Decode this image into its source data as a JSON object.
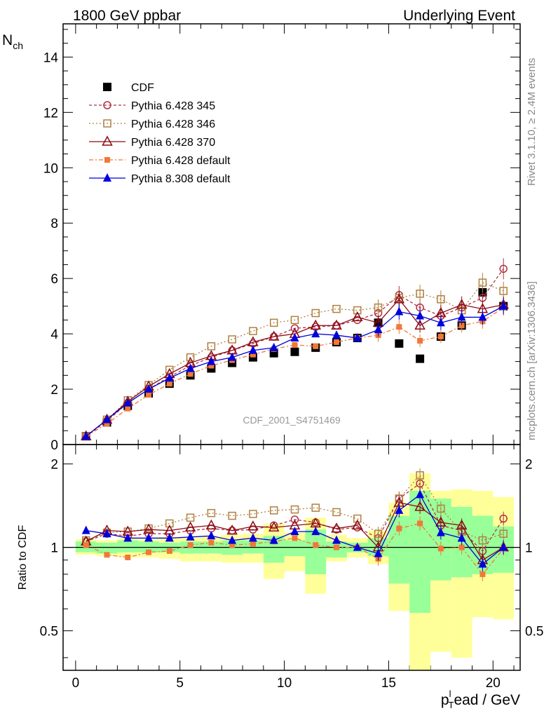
{
  "header": {
    "left": "1800 GeV ppbar",
    "right": "Underlying Event"
  },
  "side_labels": {
    "rivet": "Rivet 3.1.10, ≥ 2.4M events",
    "mcplots": "mcplots.cern.ch [arXiv:1306.3436]"
  },
  "chart_data": [
    {
      "type": "scatter",
      "panel": "main",
      "watermark": "CDF_2001_S4751469",
      "ylabel_main": "N",
      "ylabel_sub": "ch",
      "xlabel_main": "p",
      "xlabel_sub": "T",
      "xlabel_sup": "l",
      "xlabel_rest": "ead / GeV",
      "xlim": [
        -0.6,
        21.3
      ],
      "ylim": [
        0,
        15.2
      ],
      "yticks": [
        0,
        2,
        4,
        6,
        8,
        10,
        12,
        14
      ],
      "xticks": [
        0,
        5,
        10,
        15,
        20
      ],
      "x": [
        0.5,
        1.5,
        2.5,
        3.5,
        4.5,
        5.5,
        6.5,
        7.5,
        8.5,
        9.5,
        10.5,
        11.5,
        12.5,
        13.5,
        14.5,
        15.5,
        16.5,
        17.5,
        18.5,
        19.5,
        20.5
      ],
      "series": [
        {
          "name": "CDF",
          "color": "#000000",
          "marker": "square-filled",
          "values": [
            0.3,
            0.8,
            1.4,
            1.85,
            2.2,
            2.5,
            2.75,
            2.95,
            3.15,
            3.3,
            3.35,
            3.5,
            3.7,
            3.85,
            4.4,
            3.65,
            3.1,
            3.9,
            4.3,
            5.5,
            5.0
          ]
        },
        {
          "name": "Pythia 6.428 345",
          "color": "#b03040",
          "marker": "circle-open",
          "dash": "4,3",
          "values": [
            0.3,
            0.85,
            1.5,
            2.0,
            2.45,
            2.85,
            3.15,
            3.4,
            3.65,
            3.9,
            4.2,
            4.25,
            4.3,
            4.5,
            4.75,
            5.4,
            4.95,
            4.65,
            4.95,
            5.3,
            6.35
          ]
        },
        {
          "name": "Pythia 6.428 346",
          "color": "#b08040",
          "marker": "square-open",
          "dash": "2,3",
          "values": [
            0.3,
            0.9,
            1.6,
            2.15,
            2.7,
            3.15,
            3.55,
            3.8,
            4.1,
            4.4,
            4.5,
            4.75,
            4.9,
            4.85,
            4.95,
            5.3,
            5.45,
            5.25,
            4.85,
            5.85,
            5.55
          ]
        },
        {
          "name": "Pythia 6.428 370",
          "color": "#8b0a14",
          "marker": "triangle-open",
          "values": [
            0.3,
            0.9,
            1.55,
            2.1,
            2.55,
            2.95,
            3.2,
            3.4,
            3.7,
            3.9,
            4.0,
            4.3,
            4.3,
            4.6,
            4.4,
            5.25,
            4.3,
            4.75,
            5.05,
            4.9,
            5.05
          ]
        },
        {
          "name": "Pythia 6.428 default",
          "color": "#f07838",
          "marker": "square-filled-small",
          "dash": "6,3,2,3",
          "values": [
            0.3,
            0.75,
            1.3,
            1.8,
            2.2,
            2.55,
            2.85,
            3.05,
            3.25,
            3.45,
            3.6,
            3.55,
            3.7,
            3.85,
            3.95,
            4.25,
            3.75,
            3.9,
            4.3,
            4.45,
            4.95
          ]
        },
        {
          "name": "Pythia 8.308 default",
          "color": "#0000dd",
          "marker": "triangle-filled",
          "values": [
            0.3,
            0.9,
            1.5,
            2.0,
            2.4,
            2.75,
            3.0,
            3.15,
            3.4,
            3.5,
            3.85,
            4.0,
            3.95,
            3.85,
            4.15,
            4.8,
            4.65,
            4.4,
            4.6,
            4.6,
            5.0
          ]
        }
      ],
      "legend_position": "top-left"
    },
    {
      "type": "scatter",
      "panel": "ratio",
      "ylabel": "Ratio to CDF",
      "yscale": "log",
      "ylim": [
        0.36,
        2.35
      ],
      "yticks": [
        0.5,
        1,
        2
      ],
      "reference_line": 1,
      "band_green": [
        [
          0.96,
          1.05
        ],
        [
          0.95,
          1.04
        ],
        [
          0.96,
          1.06
        ],
        [
          0.96,
          1.05
        ],
        [
          0.96,
          1.04
        ],
        [
          0.95,
          1.05
        ],
        [
          0.95,
          1.05
        ],
        [
          0.94,
          1.06
        ],
        [
          0.95,
          1.06
        ],
        [
          0.88,
          1.1
        ],
        [
          0.93,
          1.06
        ],
        [
          0.8,
          1.16
        ],
        [
          0.92,
          1.05
        ],
        [
          0.96,
          1.04
        ],
        [
          0.93,
          1.08
        ],
        [
          0.74,
          1.3
        ],
        [
          0.58,
          1.6
        ],
        [
          0.76,
          1.5
        ],
        [
          0.78,
          1.4
        ],
        [
          0.8,
          1.3
        ],
        [
          0.81,
          1.19
        ]
      ],
      "band_yellow": [
        [
          0.94,
          1.07
        ],
        [
          0.93,
          1.06
        ],
        [
          0.92,
          1.08
        ],
        [
          0.92,
          1.07
        ],
        [
          0.91,
          1.09
        ],
        [
          0.89,
          1.09
        ],
        [
          0.89,
          1.1
        ],
        [
          0.88,
          1.11
        ],
        [
          0.88,
          1.12
        ],
        [
          0.77,
          1.22
        ],
        [
          0.82,
          1.13
        ],
        [
          0.68,
          1.28
        ],
        [
          0.89,
          1.11
        ],
        [
          0.92,
          1.08
        ],
        [
          0.87,
          1.15
        ],
        [
          0.59,
          1.45
        ],
        [
          0.36,
          1.85
        ],
        [
          0.42,
          1.6
        ],
        [
          0.4,
          1.62
        ],
        [
          0.56,
          1.6
        ],
        [
          0.55,
          1.52
        ]
      ],
      "x": [
        0.5,
        1.5,
        2.5,
        3.5,
        4.5,
        5.5,
        6.5,
        7.5,
        8.5,
        9.5,
        10.5,
        11.5,
        12.5,
        13.5,
        14.5,
        15.5,
        16.5,
        17.5,
        18.5,
        19.5,
        20.5
      ],
      "series": [
        {
          "name": "Pythia 6.428 345",
          "color": "#b03040",
          "marker": "circle-open",
          "dash": "4,3",
          "values": [
            1.05,
            1.12,
            1.1,
            1.12,
            1.12,
            1.15,
            1.17,
            1.15,
            1.16,
            1.2,
            1.26,
            1.23,
            1.16,
            1.18,
            1.08,
            1.5,
            1.7,
            1.2,
            1.15,
            0.97,
            1.27
          ]
        },
        {
          "name": "Pythia 6.428 346",
          "color": "#b08040",
          "marker": "square-open",
          "dash": "2,3",
          "values": [
            1.06,
            1.13,
            1.14,
            1.17,
            1.22,
            1.28,
            1.33,
            1.3,
            1.32,
            1.36,
            1.37,
            1.39,
            1.34,
            1.27,
            1.12,
            1.5,
            1.82,
            1.38,
            1.14,
            1.06,
            1.12
          ]
        },
        {
          "name": "Pythia 6.428 370",
          "color": "#8b0a14",
          "marker": "triangle-open",
          "values": [
            1.05,
            1.15,
            1.14,
            1.16,
            1.15,
            1.18,
            1.2,
            1.15,
            1.19,
            1.18,
            1.2,
            1.22,
            1.17,
            1.2,
            1.0,
            1.45,
            1.4,
            1.23,
            1.2,
            0.9,
            1.0
          ]
        },
        {
          "name": "Pythia 6.428 default",
          "color": "#f07838",
          "marker": "square-filled-small",
          "dash": "6,3,2,3",
          "values": [
            1.02,
            0.94,
            0.92,
            0.96,
            0.97,
            1.02,
            1.04,
            1.02,
            1.03,
            1.05,
            1.08,
            1.02,
            1.0,
            1.0,
            0.91,
            1.17,
            1.22,
            0.99,
            1.0,
            0.8,
            0.99
          ]
        },
        {
          "name": "Pythia 8.308 default",
          "color": "#0000dd",
          "marker": "triangle-filled",
          "values": [
            1.15,
            1.12,
            1.08,
            1.08,
            1.08,
            1.09,
            1.1,
            1.06,
            1.08,
            1.06,
            1.14,
            1.14,
            1.06,
            1.0,
            0.95,
            1.36,
            1.55,
            1.13,
            1.08,
            0.87,
            1.0
          ]
        }
      ]
    }
  ]
}
